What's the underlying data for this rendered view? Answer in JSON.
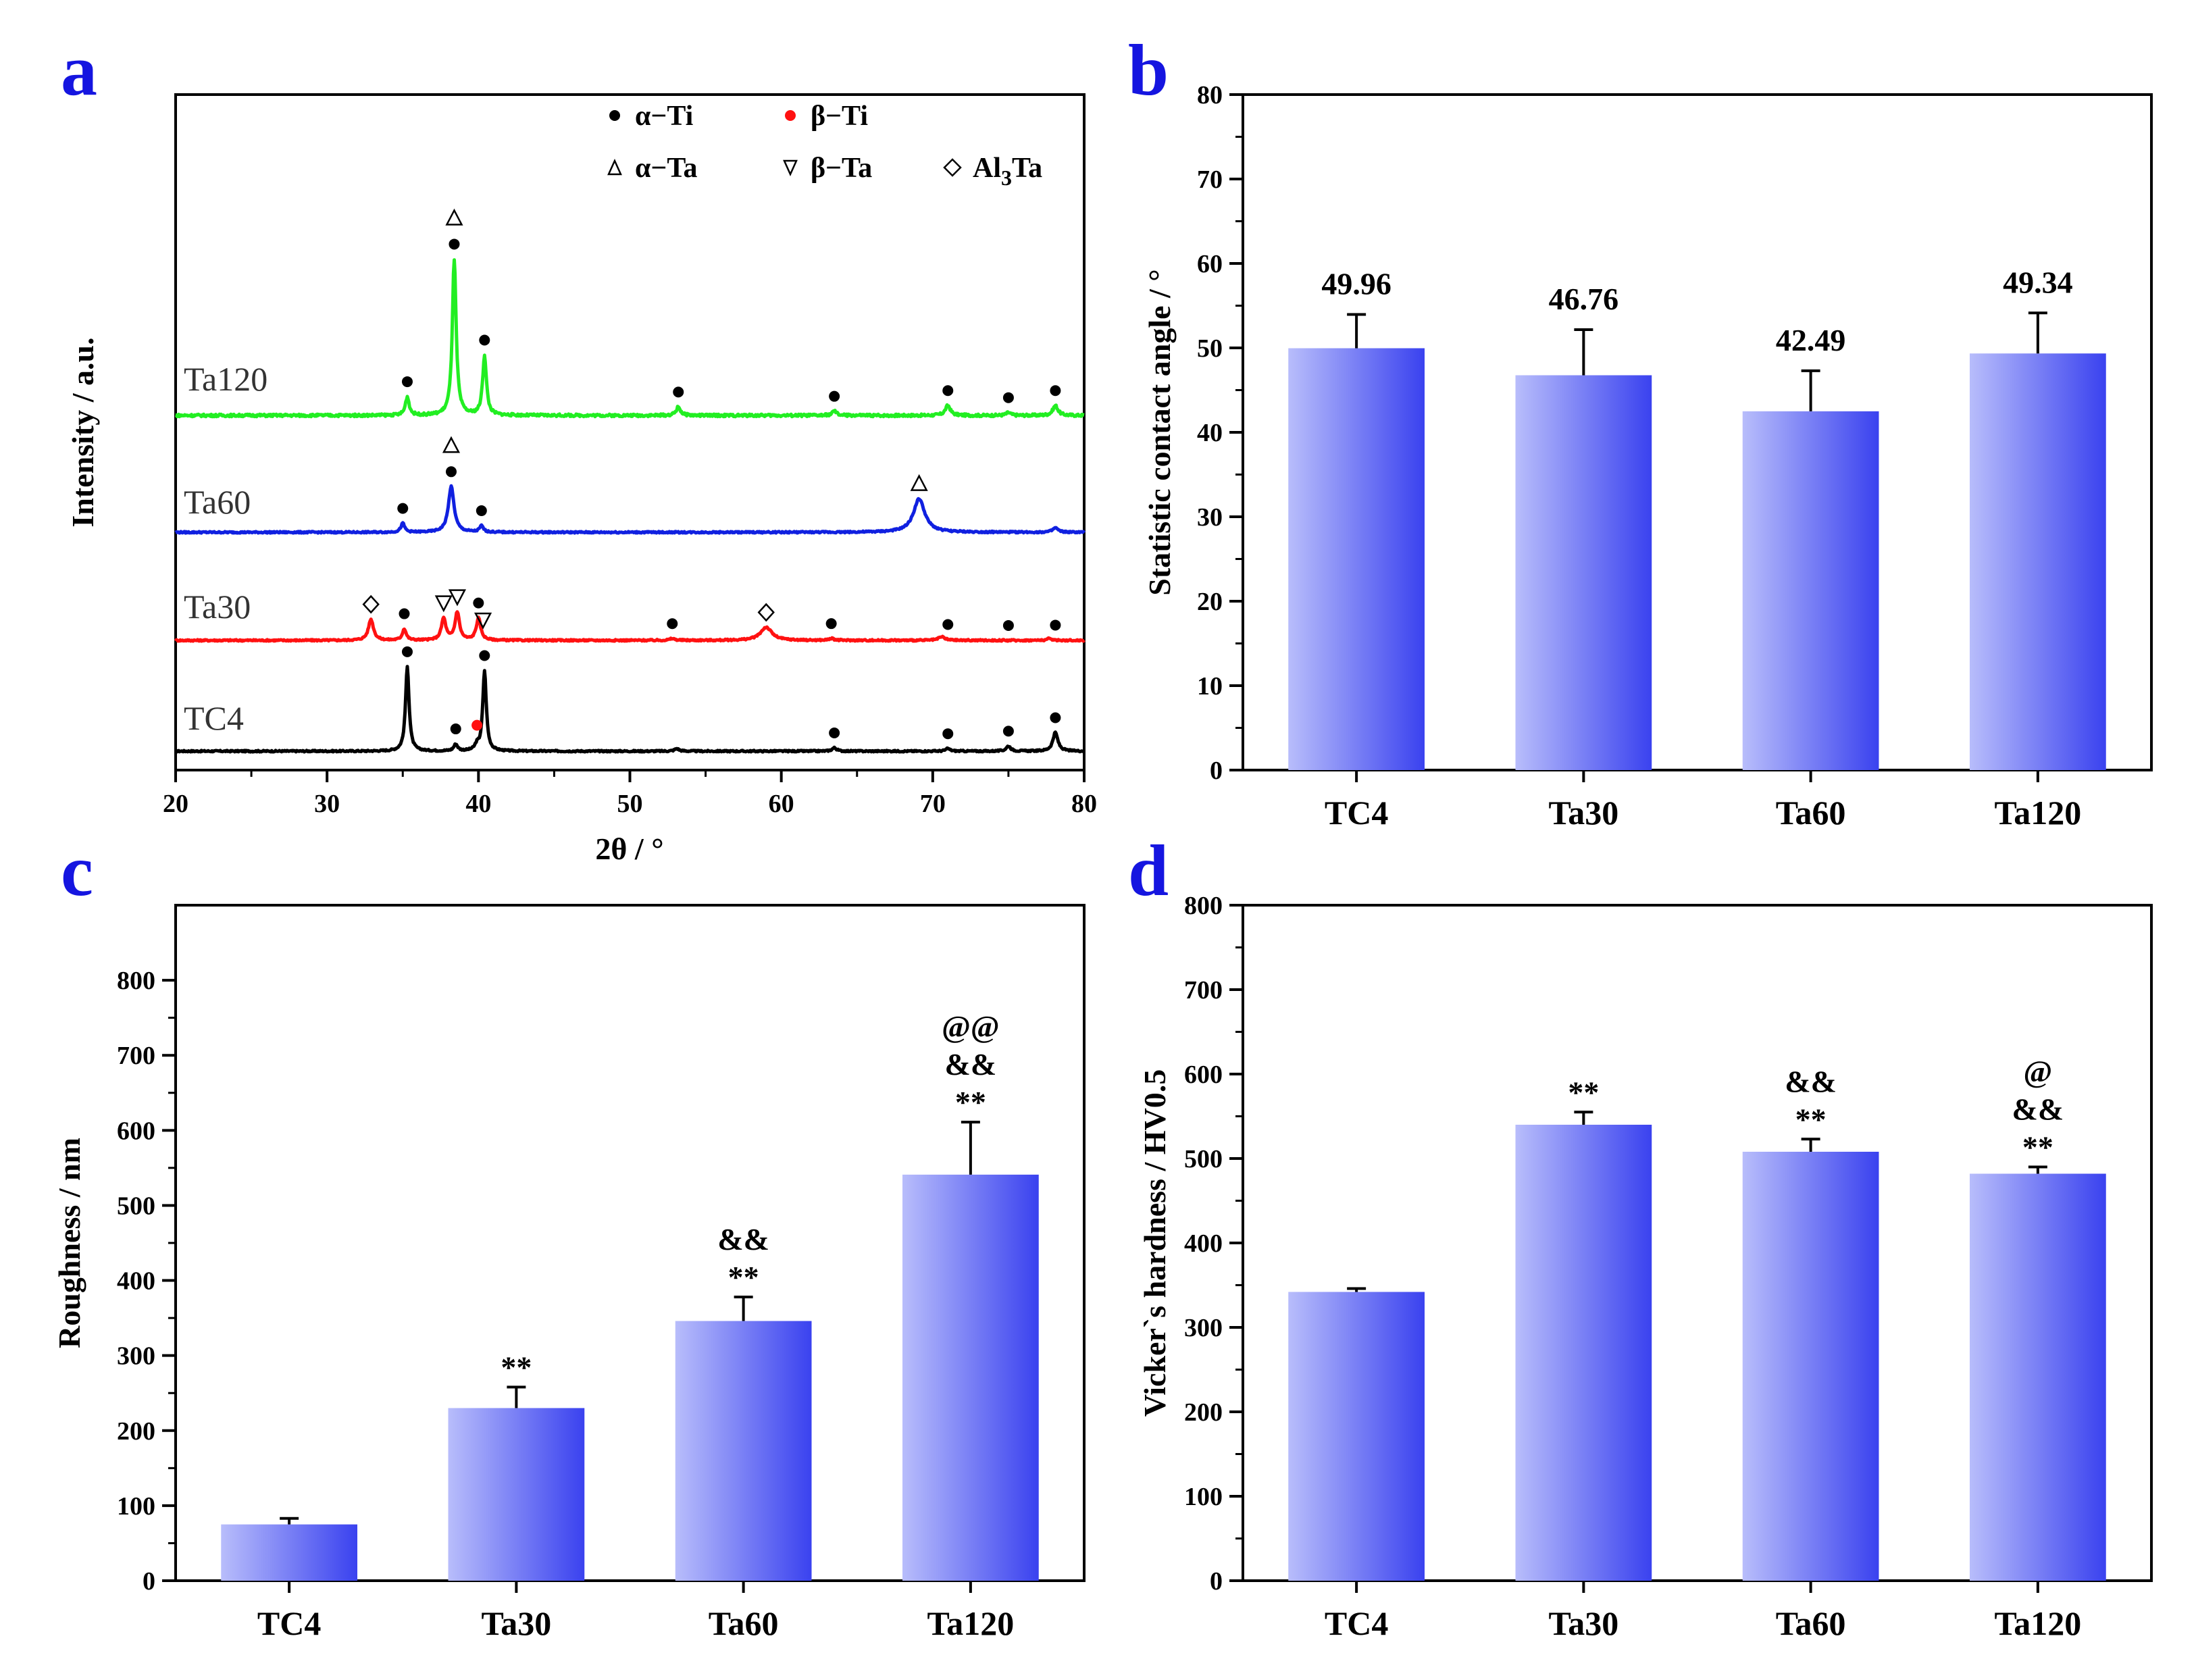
{
  "colors": {
    "panel_letter": "#1515e0",
    "bar_light": "#b8bdfb",
    "bar_dark": "#3a42ef",
    "tc4_line": "#000000",
    "ta30_line": "#ff1111",
    "ta60_line": "#1020e0",
    "ta120_line": "#22ee22",
    "beta_ti_marker": "#ff1111"
  },
  "panels": {
    "a": {
      "letter": "a"
    },
    "b": {
      "letter": "b"
    },
    "c": {
      "letter": "c"
    },
    "d": {
      "letter": "d"
    }
  },
  "chart_data": [
    {
      "panel": "a",
      "type": "line",
      "xlabel": "2θ / °",
      "ylabel": "Intensity / a.u.",
      "xlim": [
        20,
        80
      ],
      "xticks": [
        20,
        30,
        40,
        50,
        60,
        70,
        80
      ],
      "legend": {
        "placement": "top-right",
        "entries": [
          {
            "symbol": "filled-circle",
            "color": "#000000",
            "label": "α−Ti"
          },
          {
            "symbol": "filled-circle",
            "color": "#ff1111",
            "label": "β−Ti"
          },
          {
            "symbol": "open-triangle",
            "label": "α−Ta"
          },
          {
            "symbol": "open-inverted-triangle",
            "label": "β−Ta"
          },
          {
            "symbol": "open-diamond",
            "label": "Al3Ta"
          }
        ]
      },
      "series": [
        {
          "name": "TC4",
          "color": "#000000",
          "peaks": [
            {
              "x": 35.3,
              "h": 1.0,
              "w": 0.28
            },
            {
              "x": 38.5,
              "h": 0.08,
              "w": 0.3
            },
            {
              "x": 39.9,
              "h": 0.06,
              "w": 0.3
            },
            {
              "x": 40.4,
              "h": 0.95,
              "w": 0.28
            },
            {
              "x": 53.1,
              "h": 0.03,
              "w": 0.35
            },
            {
              "x": 63.5,
              "h": 0.04,
              "w": 0.35
            },
            {
              "x": 71.0,
              "h": 0.03,
              "w": 0.35
            },
            {
              "x": 75.0,
              "h": 0.06,
              "w": 0.35
            },
            {
              "x": 78.1,
              "h": 0.22,
              "w": 0.4
            }
          ],
          "markers": [
            {
              "x": 35.3,
              "symbol": "alpha-Ti"
            },
            {
              "x": 38.5,
              "symbol": "alpha-Ti"
            },
            {
              "x": 39.9,
              "symbol": "beta-Ti"
            },
            {
              "x": 40.4,
              "symbol": "alpha-Ti"
            },
            {
              "x": 63.5,
              "symbol": "alpha-Ti"
            },
            {
              "x": 71.0,
              "symbol": "alpha-Ti"
            },
            {
              "x": 75.0,
              "symbol": "alpha-Ti"
            },
            {
              "x": 78.1,
              "symbol": "alpha-Ti"
            }
          ]
        },
        {
          "name": "Ta30",
          "color": "#ff1111",
          "peaks": [
            {
              "x": 32.9,
              "h": 0.24,
              "w": 0.4
            },
            {
              "x": 35.1,
              "h": 0.13,
              "w": 0.3
            },
            {
              "x": 37.7,
              "h": 0.25,
              "w": 0.35
            },
            {
              "x": 38.6,
              "h": 0.32,
              "w": 0.35
            },
            {
              "x": 40.0,
              "h": 0.25,
              "w": 0.35
            },
            {
              "x": 52.8,
              "h": 0.02,
              "w": 0.4
            },
            {
              "x": 59.0,
              "h": 0.15,
              "w": 0.9
            },
            {
              "x": 63.3,
              "h": 0.02,
              "w": 0.4
            },
            {
              "x": 70.6,
              "h": 0.04,
              "w": 0.5
            },
            {
              "x": 77.7,
              "h": 0.02,
              "w": 0.4
            }
          ],
          "markers": [
            {
              "x": 32.9,
              "symbol": "Al3Ta"
            },
            {
              "x": 35.1,
              "symbol": "alpha-Ti"
            },
            {
              "x": 37.7,
              "symbol": "beta-Ta"
            },
            {
              "x": 38.6,
              "symbol": "beta-Ta"
            },
            {
              "x": 40.0,
              "symbol": "alpha-Ti"
            },
            {
              "x": 40.3,
              "symbol": "beta-Ta"
            },
            {
              "x": 52.8,
              "symbol": "alpha-Ti"
            },
            {
              "x": 59.0,
              "symbol": "Al3Ta"
            },
            {
              "x": 63.3,
              "symbol": "alpha-Ti"
            },
            {
              "x": 71.0,
              "symbol": "alpha-Ti"
            },
            {
              "x": 75.0,
              "symbol": "alpha-Ti"
            },
            {
              "x": 78.1,
              "symbol": "alpha-Ti"
            }
          ]
        },
        {
          "name": "Ta60",
          "color": "#1020e0",
          "peaks": [
            {
              "x": 35.0,
              "h": 0.1,
              "w": 0.3
            },
            {
              "x": 38.2,
              "h": 0.52,
              "w": 0.45
            },
            {
              "x": 40.2,
              "h": 0.07,
              "w": 0.3
            },
            {
              "x": 69.1,
              "h": 0.38,
              "w": 0.9
            },
            {
              "x": 78.1,
              "h": 0.05,
              "w": 0.4
            }
          ],
          "markers": [
            {
              "x": 35.0,
              "symbol": "alpha-Ti"
            },
            {
              "x": 38.2,
              "symbol": "alpha-Ti"
            },
            {
              "x": 38.2,
              "symbol": "alpha-Ta"
            },
            {
              "x": 40.2,
              "symbol": "alpha-Ti"
            },
            {
              "x": 69.1,
              "symbol": "alpha-Ta"
            }
          ]
        },
        {
          "name": "Ta120",
          "color": "#22ee22",
          "peaks": [
            {
              "x": 35.3,
              "h": 0.13,
              "w": 0.3
            },
            {
              "x": 38.4,
              "h": 1.1,
              "w": 0.3
            },
            {
              "x": 40.4,
              "h": 0.42,
              "w": 0.3
            },
            {
              "x": 53.2,
              "h": 0.06,
              "w": 0.35
            },
            {
              "x": 63.5,
              "h": 0.03,
              "w": 0.35
            },
            {
              "x": 71.0,
              "h": 0.07,
              "w": 0.4
            },
            {
              "x": 75.0,
              "h": 0.02,
              "w": 0.35
            },
            {
              "x": 78.1,
              "h": 0.07,
              "w": 0.4
            }
          ],
          "markers": [
            {
              "x": 35.3,
              "symbol": "alpha-Ti"
            },
            {
              "x": 38.4,
              "symbol": "alpha-Ti"
            },
            {
              "x": 38.4,
              "symbol": "alpha-Ta"
            },
            {
              "x": 40.4,
              "symbol": "alpha-Ti"
            },
            {
              "x": 53.2,
              "symbol": "alpha-Ti"
            },
            {
              "x": 63.5,
              "symbol": "alpha-Ti"
            },
            {
              "x": 71.0,
              "symbol": "alpha-Ti"
            },
            {
              "x": 75.0,
              "symbol": "alpha-Ti"
            },
            {
              "x": 78.1,
              "symbol": "alpha-Ti"
            }
          ]
        }
      ]
    },
    {
      "panel": "b",
      "type": "bar",
      "ylabel": "Statistic contact angle / °",
      "ylim": [
        0,
        80
      ],
      "yticks": [
        0,
        10,
        20,
        30,
        40,
        50,
        60,
        70,
        80
      ],
      "categories": [
        "TC4",
        "Ta30",
        "Ta60",
        "Ta120"
      ],
      "values": [
        49.96,
        46.76,
        42.49,
        49.34
      ],
      "errors": [
        4.0,
        5.4,
        4.8,
        4.8
      ],
      "value_labels": [
        "49.96",
        "46.76",
        "42.49",
        "49.34"
      ]
    },
    {
      "panel": "c",
      "type": "bar",
      "ylabel": "Roughness / nm",
      "ylim": [
        0,
        900
      ],
      "yticks": [
        0,
        100,
        200,
        300,
        400,
        500,
        600,
        700,
        800
      ],
      "categories": [
        "TC4",
        "Ta30",
        "Ta60",
        "Ta120"
      ],
      "values": [
        75,
        230,
        346,
        541
      ],
      "errors": [
        8,
        28,
        32,
        70
      ],
      "significance": [
        [],
        [
          "**"
        ],
        [
          "&&",
          "**"
        ],
        [
          "@@",
          "&&",
          "**"
        ]
      ]
    },
    {
      "panel": "d",
      "type": "bar",
      "ylabel": "Vicker`s hardness / HV0.5",
      "ylim": [
        0,
        800
      ],
      "yticks": [
        0,
        100,
        200,
        300,
        400,
        500,
        600,
        700,
        800
      ],
      "categories": [
        "TC4",
        "Ta30",
        "Ta60",
        "Ta120"
      ],
      "values": [
        342,
        540,
        508,
        482
      ],
      "errors": [
        4,
        15,
        15,
        8
      ],
      "significance": [
        [],
        [
          "**"
        ],
        [
          "&&",
          "**"
        ],
        [
          "@",
          "&&",
          "**"
        ]
      ]
    }
  ]
}
